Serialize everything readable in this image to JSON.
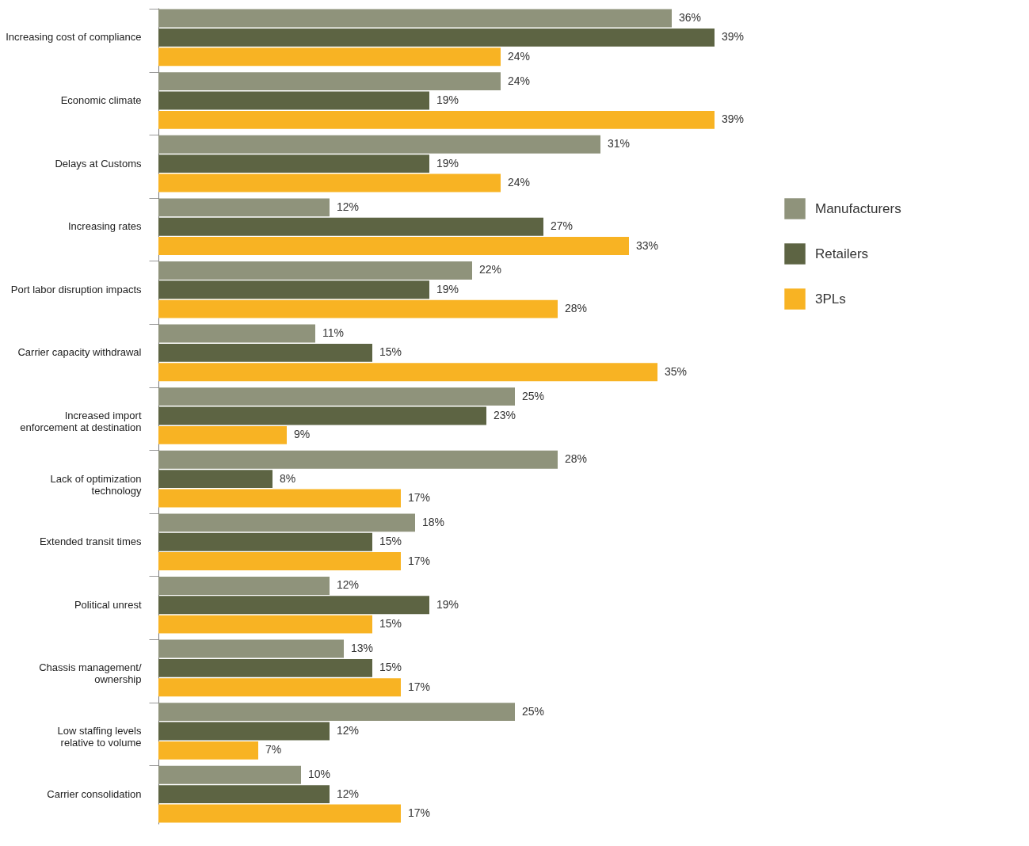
{
  "chart_data": {
    "type": "bar",
    "orientation": "horizontal",
    "legend": "right",
    "categories": [
      "Increasing cost of compliance",
      "Economic climate",
      "Delays at Customs",
      "Increasing rates",
      "Port labor disruption impacts",
      "Carrier capacity withdrawal",
      "Increased import enforcement at destination",
      "Lack of optimization technology",
      "Extended transit times",
      "Political unrest",
      "Chassis management/ ownership",
      "Low staffing levels relative to volume",
      "Carrier consolidation"
    ],
    "series": [
      {
        "name": "Manufacturers",
        "color": "#8f937b",
        "values": [
          36,
          24,
          31,
          12,
          22,
          11,
          25,
          28,
          18,
          12,
          13,
          25,
          10
        ],
        "value_labels": [
          "36%",
          "24%",
          "31%",
          "12%",
          "22%",
          "11%",
          "25%",
          "28%",
          "18%",
          "12%",
          "13%",
          "25%",
          "10%"
        ]
      },
      {
        "name": "Retailers",
        "color": "#5d6443",
        "values": [
          39,
          19,
          19,
          27,
          19,
          15,
          23,
          8,
          15,
          19,
          15,
          12,
          12
        ],
        "value_labels": [
          "39%",
          "19%",
          "19%",
          "27%",
          "19%",
          "15%",
          "23%",
          "8%",
          "15%",
          "19%",
          "15%",
          "12%",
          "12%"
        ]
      },
      {
        "name": "3PLs",
        "color": "#f8b323",
        "values": [
          24,
          39,
          24,
          33,
          28,
          35,
          9,
          17,
          17,
          15,
          17,
          7,
          17
        ],
        "value_labels": [
          "24%",
          "39%",
          "24%",
          "33%",
          "28%",
          "35%",
          "9%",
          "17%",
          "17%",
          "15%",
          "17%",
          "7%",
          "17%"
        ]
      }
    ]
  }
}
